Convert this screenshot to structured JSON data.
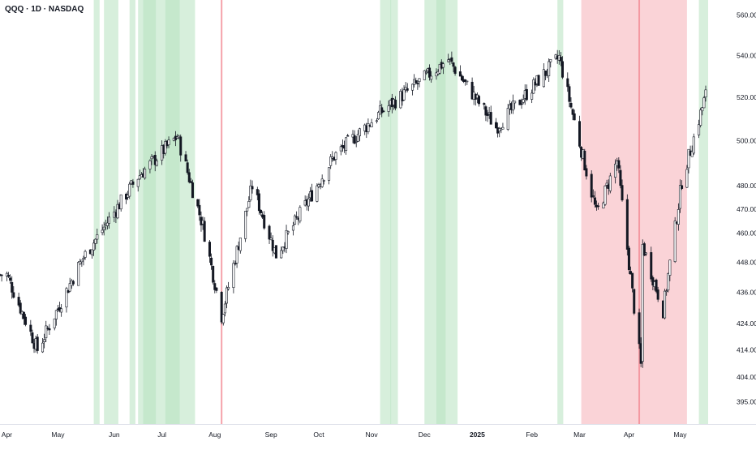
{
  "chart_data": {
    "type": "candlestick",
    "title": "QQQ · 1D · NASDAQ",
    "symbol": "QQQ",
    "interval": "1D",
    "exchange": "NASDAQ",
    "ylim": [
      392,
      566
    ],
    "y_scale": "log",
    "price_ticks": [
      "395.00",
      "404.00",
      "414.00",
      "424.00",
      "436.00",
      "448.00",
      "460.00",
      "470.00",
      "480.00",
      "500.00",
      "520.00",
      "540.00",
      "560.00"
    ],
    "time_ticks": [
      {
        "label": "Apr",
        "date": "2024-04-01"
      },
      {
        "label": "May",
        "date": "2024-05-01"
      },
      {
        "label": "Jun",
        "date": "2024-06-03"
      },
      {
        "label": "Jul",
        "date": "2024-07-01"
      },
      {
        "label": "Aug",
        "date": "2024-08-01"
      },
      {
        "label": "Sep",
        "date": "2024-09-03"
      },
      {
        "label": "Oct",
        "date": "2024-10-01"
      },
      {
        "label": "Nov",
        "date": "2024-11-01"
      },
      {
        "label": "Dec",
        "date": "2024-12-02"
      },
      {
        "label": "2025",
        "date": "2025-01-02"
      },
      {
        "label": "Feb",
        "date": "2025-02-03"
      },
      {
        "label": "Mar",
        "date": "2025-03-03"
      },
      {
        "label": "Apr",
        "date": "2025-04-01"
      },
      {
        "label": "May",
        "date": "2025-05-01"
      }
    ],
    "x_range": [
      "2024-03-28",
      "2025-05-16"
    ],
    "key_prices": [
      {
        "date": "2024-04-01",
        "close": 443
      },
      {
        "date": "2024-04-19",
        "close": 414
      },
      {
        "date": "2024-05-15",
        "close": 449
      },
      {
        "date": "2024-06-17",
        "close": 484
      },
      {
        "date": "2024-07-10",
        "close": 502
      },
      {
        "date": "2024-07-25",
        "close": 463
      },
      {
        "date": "2024-08-05",
        "close": 427
      },
      {
        "date": "2024-08-23",
        "close": 480
      },
      {
        "date": "2024-09-06",
        "close": 451
      },
      {
        "date": "2024-10-10",
        "close": 493
      },
      {
        "date": "2024-11-08",
        "close": 514
      },
      {
        "date": "2024-12-16",
        "close": 538
      },
      {
        "date": "2025-01-13",
        "close": 506
      },
      {
        "date": "2025-02-19",
        "close": 539
      },
      {
        "date": "2025-03-13",
        "close": 468
      },
      {
        "date": "2025-03-25",
        "close": 491
      },
      {
        "date": "2025-04-08",
        "close": 408
      },
      {
        "date": "2025-04-09",
        "close": 455
      },
      {
        "date": "2025-04-21",
        "close": 429
      },
      {
        "date": "2025-05-02",
        "close": 482
      },
      {
        "date": "2025-05-16",
        "close": 521
      }
    ],
    "green_zones": [
      [
        "2024-05-22",
        "2024-05-24"
      ],
      [
        "2024-05-28",
        "2024-06-04"
      ],
      [
        "2024-06-12",
        "2024-06-14"
      ],
      [
        "2024-06-17",
        "2024-07-19"
      ],
      [
        "2024-06-20",
        "2024-06-26"
      ],
      [
        "2024-07-03",
        "2024-07-10"
      ],
      [
        "2024-11-06",
        "2024-11-11"
      ],
      [
        "2024-11-12",
        "2024-11-15"
      ],
      [
        "2024-12-02",
        "2024-12-20"
      ],
      [
        "2024-12-09",
        "2024-12-13"
      ],
      [
        "2025-02-18",
        "2025-02-20"
      ],
      [
        "2025-05-12",
        "2025-05-16"
      ]
    ],
    "red_zones": [
      [
        "2025-03-04",
        "2025-05-05"
      ]
    ],
    "red_lines": [
      "2024-08-05",
      "2025-04-07"
    ],
    "colors": {
      "green_zone": "#b7e1bf",
      "red_zone": "#f7b6bd",
      "up_body": "#ffffff",
      "down_body": "#131722",
      "wick": "#131722",
      "axis_text": "#131722"
    }
  }
}
